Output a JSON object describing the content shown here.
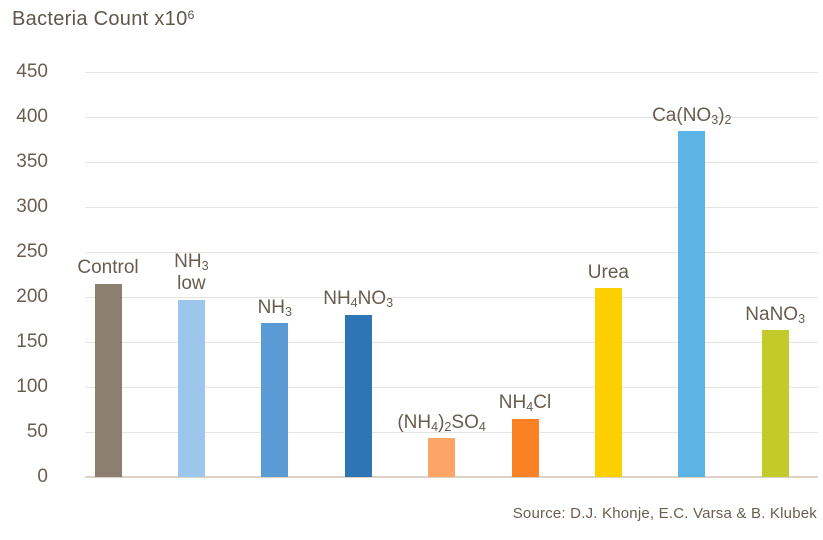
{
  "colors": {
    "background": "#ffffff",
    "text": "#6a5d50",
    "title_text": "#60564c",
    "gridline": "#e6e4e1",
    "baseline": "#dcd2c6"
  },
  "chart_data": {
    "type": "bar",
    "title": "Bacteria Count x10⁶",
    "source": "Source: D.J. Khonje, E.C. Varsa & B. Klubek",
    "categories": [
      "Control",
      "NH₃ low",
      "NH₃",
      "NH₄NO₃",
      "(NH₄)₂SO₄",
      "NH₄Cl",
      "Urea",
      "Ca(NO₃)₂",
      "NaNO₃"
    ],
    "display_labels": [
      "Control",
      "NH₃\nlow",
      "NH₃",
      "NH₄NO₃",
      "(NH₄)₂SO₄",
      "NH₄Cl",
      "Urea",
      "Ca(NO₃)₂",
      "NaNO₃"
    ],
    "values": [
      215,
      197,
      171,
      180,
      43,
      65,
      210,
      384,
      163
    ],
    "bar_colors": [
      "#8c7f70",
      "#9cc6ec",
      "#5b9bd5",
      "#2e75b6",
      "#fca566",
      "#fb8125",
      "#ffd000",
      "#5cb3e5",
      "#c2cb2a"
    ],
    "xlabel": "",
    "ylabel": "Bacteria Count x10⁶",
    "ylim": [
      0,
      450
    ],
    "yticks": [
      0,
      50,
      100,
      150,
      200,
      250,
      300,
      350,
      400,
      450
    ],
    "grid": "horizontal",
    "legend": "none",
    "bar_label_position": "above-bar"
  }
}
